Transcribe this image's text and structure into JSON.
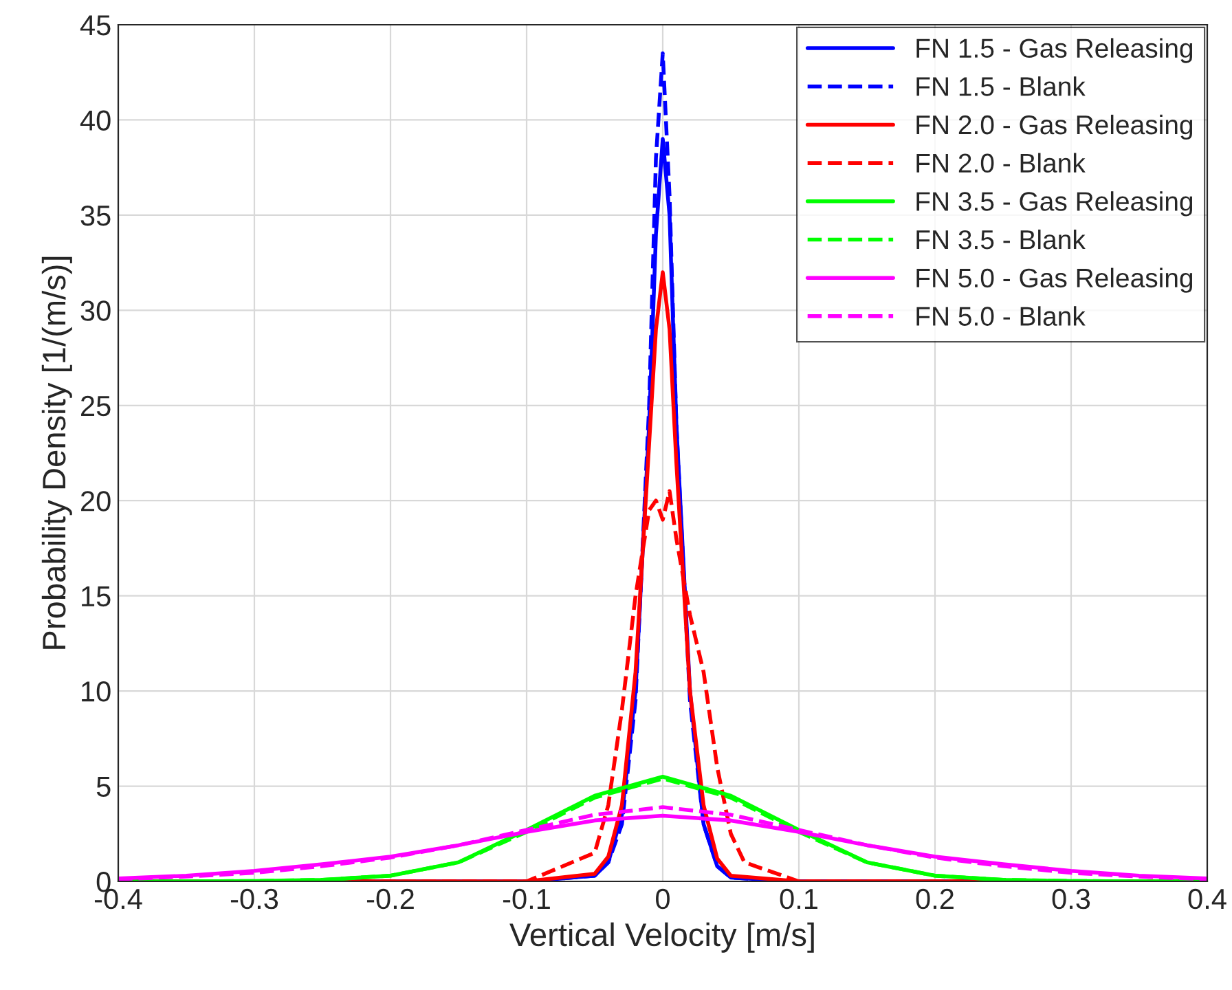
{
  "chart_data": {
    "type": "line",
    "xlabel": "Vertical Velocity [m/s]",
    "ylabel": "Probability Density [1/(m/s)]",
    "xlim": [
      -0.4,
      0.4
    ],
    "xticks": [
      -0.4,
      -0.3,
      -0.2,
      -0.1,
      0,
      0.1,
      0.2,
      0.3,
      0.4
    ],
    "ylim": [
      0,
      45
    ],
    "yticks": [
      0,
      5,
      10,
      15,
      20,
      25,
      30,
      35,
      40,
      45
    ],
    "grid": true,
    "legend": "top right",
    "marker": "none",
    "series": [
      {
        "name": "FN 1.5 - Gas Releasing",
        "color": "#0000ff",
        "line_style": "solid",
        "x": [
          -0.4,
          -0.1,
          -0.05,
          -0.04,
          -0.03,
          -0.02,
          -0.01,
          -0.005,
          0,
          0.005,
          0.01,
          0.02,
          0.03,
          0.04,
          0.05,
          0.1,
          0.4
        ],
        "values": [
          0,
          0,
          0.3,
          1,
          3.5,
          10,
          24,
          34,
          39,
          35,
          24,
          10,
          3,
          0.8,
          0.2,
          0,
          0
        ]
      },
      {
        "name": "FN 1.5 - Blank",
        "color": "#0000ff",
        "line_style": "dashed",
        "x": [
          -0.4,
          -0.1,
          -0.05,
          -0.04,
          -0.03,
          -0.02,
          -0.01,
          -0.005,
          0,
          0.005,
          0.01,
          0.02,
          0.03,
          0.04,
          0.05,
          0.1,
          0.4
        ],
        "values": [
          0,
          0,
          0.3,
          1,
          3,
          9.5,
          25,
          38,
          43.5,
          36,
          24,
          9.5,
          3,
          0.8,
          0.2,
          0,
          0
        ]
      },
      {
        "name": "FN 2.0 - Gas Releasing",
        "color": "#ff0000",
        "line_style": "solid",
        "x": [
          -0.4,
          -0.1,
          -0.05,
          -0.04,
          -0.03,
          -0.02,
          -0.01,
          -0.005,
          0,
          0.005,
          0.01,
          0.02,
          0.03,
          0.04,
          0.05,
          0.1,
          0.4
        ],
        "values": [
          0,
          0,
          0.4,
          1.3,
          4,
          11,
          23,
          29,
          32,
          29,
          22,
          10,
          4,
          1.2,
          0.3,
          0,
          0
        ]
      },
      {
        "name": "FN 2.0 - Blank",
        "color": "#ff0000",
        "line_style": "dashed",
        "x": [
          -0.4,
          -0.1,
          -0.05,
          -0.04,
          -0.03,
          -0.02,
          -0.01,
          -0.005,
          0,
          0.005,
          0.01,
          0.02,
          0.03,
          0.04,
          0.05,
          0.06,
          0.1,
          0.4
        ],
        "values": [
          0,
          0,
          1.5,
          4,
          9,
          15,
          19.5,
          20,
          19,
          20.5,
          18,
          14,
          11,
          6,
          2.5,
          1,
          0,
          0
        ]
      },
      {
        "name": "FN 3.5 - Gas Releasing",
        "color": "#00ff00",
        "line_style": "solid",
        "x": [
          -0.4,
          -0.35,
          -0.3,
          -0.25,
          -0.2,
          -0.15,
          -0.1,
          -0.05,
          0,
          0.05,
          0.1,
          0.15,
          0.2,
          0.25,
          0.3,
          0.35,
          0.4
        ],
        "values": [
          0,
          0,
          0.02,
          0.08,
          0.3,
          1,
          2.7,
          4.5,
          5.5,
          4.5,
          2.7,
          1,
          0.3,
          0.08,
          0.02,
          0,
          0
        ]
      },
      {
        "name": "FN 3.5 - Blank",
        "color": "#00ff00",
        "line_style": "dashed",
        "x": [
          -0.4,
          -0.35,
          -0.3,
          -0.25,
          -0.2,
          -0.15,
          -0.1,
          -0.05,
          0,
          0.05,
          0.1,
          0.15,
          0.2,
          0.25,
          0.3,
          0.35,
          0.4
        ],
        "values": [
          0,
          0,
          0.02,
          0.08,
          0.3,
          1,
          2.6,
          4.4,
          5.4,
          4.4,
          2.6,
          1,
          0.3,
          0.08,
          0.02,
          0,
          0
        ]
      },
      {
        "name": "FN 5.0 - Gas Releasing",
        "color": "#ff00ff",
        "line_style": "solid",
        "x": [
          -0.4,
          -0.35,
          -0.3,
          -0.25,
          -0.2,
          -0.15,
          -0.1,
          -0.05,
          0,
          0.05,
          0.1,
          0.15,
          0.2,
          0.25,
          0.3,
          0.35,
          0.4
        ],
        "values": [
          0.15,
          0.3,
          0.55,
          0.9,
          1.3,
          1.9,
          2.6,
          3.2,
          3.45,
          3.2,
          2.6,
          1.9,
          1.3,
          0.9,
          0.55,
          0.3,
          0.15
        ]
      },
      {
        "name": "FN 5.0 - Blank",
        "color": "#ff00ff",
        "line_style": "dashed",
        "x": [
          -0.4,
          -0.35,
          -0.3,
          -0.25,
          -0.2,
          -0.15,
          -0.1,
          -0.05,
          0,
          0.05,
          0.1,
          0.15,
          0.2,
          0.25,
          0.3,
          0.35,
          0.4
        ],
        "values": [
          0.12,
          0.25,
          0.45,
          0.8,
          1.25,
          1.9,
          2.7,
          3.5,
          3.9,
          3.5,
          2.7,
          1.9,
          1.25,
          0.8,
          0.45,
          0.25,
          0.12
        ]
      }
    ]
  }
}
